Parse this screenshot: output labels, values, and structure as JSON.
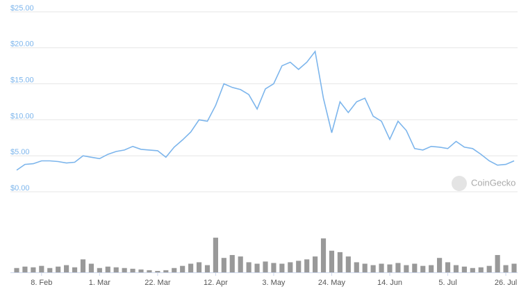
{
  "chart_data": [
    {
      "type": "line",
      "color": "#7cb5ec",
      "annotation": "CoinGecko",
      "values": [
        3.0,
        3.8,
        3.9,
        4.3,
        4.3,
        4.2,
        4.0,
        4.1,
        5.0,
        4.8,
        4.6,
        5.2,
        5.6,
        5.8,
        6.3,
        5.9,
        5.8,
        5.7,
        4.8,
        6.2,
        7.2,
        8.3,
        10.0,
        9.8,
        12.0,
        15.0,
        14.5,
        14.2,
        13.5,
        11.5,
        14.3,
        15.0,
        17.5,
        18.0,
        17.0,
        18.0,
        19.5,
        13.0,
        8.2,
        12.5,
        11.0,
        12.5,
        13.0,
        10.5,
        9.8,
        7.3,
        9.8,
        8.5,
        6.0,
        5.8,
        6.3,
        6.2,
        6.0,
        7.0,
        6.2,
        6.0,
        5.2,
        4.3,
        3.7,
        3.8,
        4.3
      ],
      "ylim": [
        0,
        25
      ],
      "yticks": [
        {
          "value": 0,
          "label": "$0.00"
        },
        {
          "value": 5,
          "label": "$5.00"
        },
        {
          "value": 10,
          "label": "$10.00"
        },
        {
          "value": 15,
          "label": "$15.00"
        },
        {
          "value": 20,
          "label": "$20.00"
        },
        {
          "value": 25,
          "label": "$25.00"
        }
      ],
      "grid": true
    },
    {
      "type": "bar",
      "color": "#999999",
      "categories": [
        null,
        null,
        null,
        "8. Feb",
        null,
        null,
        null,
        null,
        null,
        null,
        "1. Mar",
        null,
        null,
        null,
        null,
        null,
        null,
        "22. Mar",
        null,
        null,
        null,
        null,
        null,
        null,
        "12. Apr",
        null,
        null,
        null,
        null,
        null,
        null,
        "3. May",
        null,
        null,
        null,
        null,
        null,
        null,
        "24. May",
        null,
        null,
        null,
        null,
        null,
        null,
        "14. Jun",
        null,
        null,
        null,
        null,
        null,
        null,
        "5. Jul",
        null,
        null,
        null,
        null,
        null,
        null,
        "26. Jul",
        null
      ],
      "values": [
        6,
        8,
        7,
        9,
        6,
        8,
        10,
        7,
        18,
        12,
        6,
        8,
        7,
        6,
        5,
        4,
        3,
        2,
        3,
        6,
        9,
        12,
        14,
        10,
        48,
        20,
        24,
        22,
        14,
        12,
        15,
        13,
        12,
        14,
        16,
        18,
        22,
        47,
        30,
        28,
        22,
        14,
        12,
        10,
        12,
        11,
        13,
        10,
        12,
        9,
        10,
        20,
        14,
        10,
        8,
        6,
        7,
        9,
        24,
        10,
        12
      ],
      "ylim": [
        0,
        50
      ]
    }
  ]
}
